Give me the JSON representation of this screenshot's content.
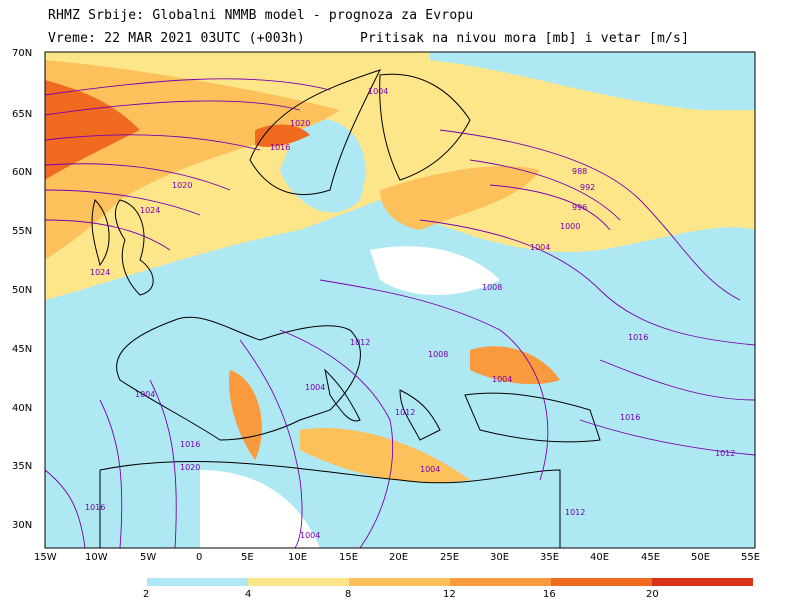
{
  "header": {
    "line1": "RHMZ Srbije: Globalni NMMB model - prognoza za Evropu",
    "line2_left": "Vreme: 22 MAR 2021 03UTC (+003h)",
    "line2_right": "Pritisak na nivou mora [mb] i vetar [m/s]"
  },
  "axes": {
    "lat_labels": [
      "70N",
      "65N",
      "60N",
      "55N",
      "50N",
      "45N",
      "40N",
      "35N",
      "30N"
    ],
    "lon_labels": [
      "15W",
      "10W",
      "5W",
      "0",
      "5E",
      "10E",
      "15E",
      "20E",
      "25E",
      "30E",
      "35E",
      "40E",
      "45E",
      "50E",
      "55E"
    ]
  },
  "isobars": [
    "1004",
    "1016",
    "1020",
    "1024",
    "1024",
    "1020",
    "1012",
    "1008",
    "1004",
    "988",
    "992",
    "996",
    "1000",
    "1004",
    "1016",
    "1016",
    "1012",
    "1012",
    "1008",
    "1004",
    "1004",
    "1004",
    "1016",
    "1020",
    "1016",
    "1012",
    "1004"
  ],
  "colorbar": {
    "ticks": [
      "2",
      "4",
      "8",
      "12",
      "16",
      "20"
    ],
    "colors": [
      "#aee8f2",
      "#fde68a",
      "#fdc15c",
      "#f99a3f",
      "#f06a20",
      "#d8321b",
      "#b80f0f"
    ]
  },
  "colors": {
    "water": "#ffffff",
    "calm": "#aee8f2",
    "isobar": "#7a00b0",
    "coast": "#000000"
  }
}
